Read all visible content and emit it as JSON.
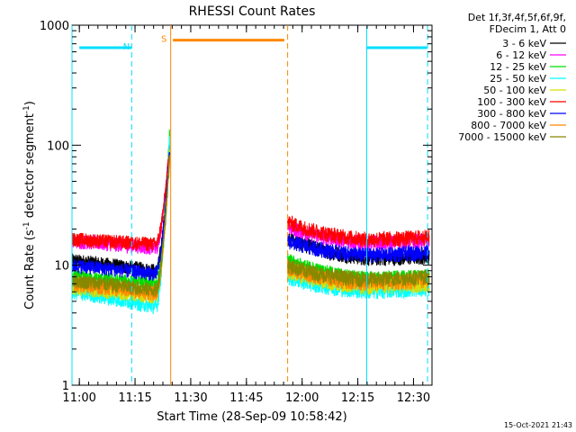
{
  "chart_data": {
    "type": "line",
    "title": "RHESSI Count Rates",
    "xlabel": "Start Time (28-Sep-09 10:58:42)",
    "ylabel_main": "Count Rate (s",
    "ylabel_sup": "-1",
    "ylabel_tail": " detector segment",
    "ylabel_sup2": "-1",
    "ylabel_end": ")",
    "yscale": "log",
    "ylim": [
      1,
      1000
    ],
    "xlim_minutes": [
      10.967,
      12.583
    ],
    "xticks": [
      {
        "label": "11:00",
        "value": 11.0
      },
      {
        "label": "11:15",
        "value": 11.25
      },
      {
        "label": "11:30",
        "value": 11.5
      },
      {
        "label": "11:45",
        "value": 11.75
      },
      {
        "label": "12:00",
        "value": 12.0
      },
      {
        "label": "12:15",
        "value": 12.25
      },
      {
        "label": "12:30",
        "value": 12.5
      }
    ],
    "yticks": [
      {
        "label": "1",
        "value": 1
      },
      {
        "label": "10",
        "value": 10
      },
      {
        "label": "100",
        "value": 100
      },
      {
        "label": "1000",
        "value": 1000
      }
    ],
    "legend_header": [
      "Det 1f,3f,4f,5f,6f,9f,",
      "FDecim 1, Att 0"
    ],
    "series": [
      {
        "name": "3 - 6 keV",
        "color": "#000000",
        "pre": 11,
        "pre_end": 9,
        "peak": 95,
        "post_start": 17,
        "post_end": 11
      },
      {
        "name": "6 - 12 keV",
        "color": "#ff00ff",
        "pre": 16,
        "pre_end": 14,
        "peak": 100,
        "post_start": 21,
        "post_end": 15
      },
      {
        "name": "12 - 25 keV",
        "color": "#00dd00",
        "pre": 8,
        "pre_end": 7,
        "peak": 135,
        "post_start": 11,
        "post_end": 7.5
      },
      {
        "name": "25 - 50 keV",
        "color": "#00ffff",
        "pre": 6,
        "pre_end": 4.5,
        "peak": 120,
        "post_start": 8,
        "post_end": 6
      },
      {
        "name": "50 - 100 keV",
        "color": "#dddd00",
        "pre": 6.5,
        "pre_end": 5.5,
        "peak": 90,
        "post_start": 9,
        "post_end": 6.5
      },
      {
        "name": "100 - 300 keV",
        "color": "#ff0000",
        "pre": 16.5,
        "pre_end": 15,
        "peak": 100,
        "post_start": 23,
        "post_end": 16
      },
      {
        "name": "300 - 800 keV",
        "color": "#0000ff",
        "pre": 10,
        "pre_end": 8.5,
        "peak": 90,
        "post_start": 16,
        "post_end": 12
      },
      {
        "name": "800 - 7000 keV",
        "color": "#ff8800",
        "pre": 7,
        "pre_end": 5.8,
        "peak": 85,
        "post_start": 9.5,
        "post_end": 7
      },
      {
        "name": "7000 - 15000 keV",
        "color": "#888800",
        "pre": 7.5,
        "pre_end": 6.2,
        "peak": 80,
        "post_start": 10,
        "post_end": 7.5
      }
    ],
    "data_gap": {
      "start": 11.41,
      "end": 11.935
    },
    "annotations": [
      {
        "label": "N",
        "color": "#00e0ff",
        "start": 11.0,
        "end": 11.235,
        "level": 650
      },
      {
        "label": "S",
        "color": "#ff8800",
        "start": 11.42,
        "end": 11.92,
        "level": 750
      },
      {
        "label": "",
        "color": "#00e0ff",
        "start": 12.29,
        "end": 12.56,
        "level": 650
      }
    ],
    "vlines": [
      {
        "value": 10.967,
        "color": "#00e0ff",
        "style": "solid"
      },
      {
        "value": 11.235,
        "color": "#00e0ff",
        "style": "dashed"
      },
      {
        "value": 11.41,
        "color": "#ff8800",
        "style": "solid"
      },
      {
        "value": 11.935,
        "color": "#ff8800",
        "style": "dashed"
      },
      {
        "value": 12.29,
        "color": "#00e0ff",
        "style": "solid"
      },
      {
        "value": 12.563,
        "color": "#00e0ff",
        "style": "dashed"
      }
    ],
    "footer_date": "15-Oct-2021 21:43"
  }
}
